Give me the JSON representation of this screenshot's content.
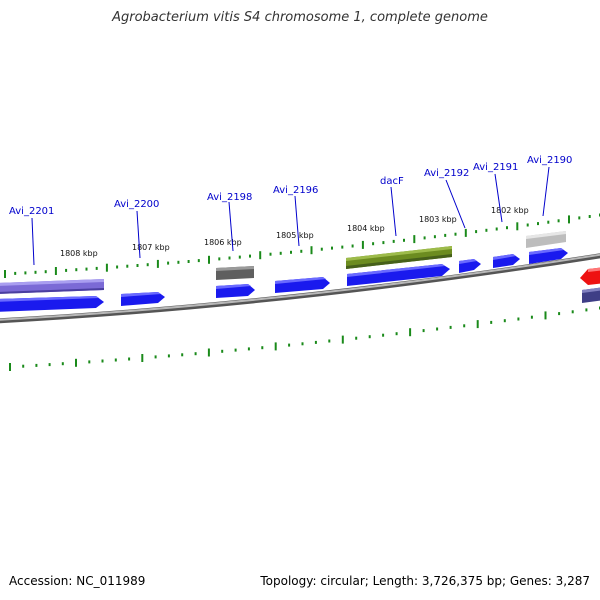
{
  "title": "Agrobacterium vitis S4 chromosome 1, complete genome",
  "footer": {
    "accession": "Accession: NC_011989",
    "summary": "Topology: circular; Length: 3,726,375 bp; Genes: 3,287"
  },
  "colors": {
    "forward_gene": "#1a1aee",
    "pseudogene": "#7b6ad6",
    "dark_gene": "#5f5f5f",
    "rna_gene": "#6c8c20",
    "light_gene": "#bdbdbd",
    "red_gene": "#ee1111",
    "navy_gene": "#3e3e86",
    "backbone": "#808080",
    "tick": "#1a8a1a",
    "label": "#0000cc"
  },
  "scale_labels": [
    {
      "id": "kbp-1808",
      "text": "1808 kbp"
    },
    {
      "id": "kbp-1807",
      "text": "1807 kbp"
    },
    {
      "id": "kbp-1806",
      "text": "1806 kbp"
    },
    {
      "id": "kbp-1805",
      "text": "1805 kbp"
    },
    {
      "id": "kbp-1804",
      "text": "1804 kbp"
    },
    {
      "id": "kbp-1803",
      "text": "1803 kbp"
    },
    {
      "id": "kbp-1802",
      "text": "1802 kbp"
    }
  ],
  "gene_labels": [
    {
      "id": "avi-2201",
      "text": "Avi_2201"
    },
    {
      "id": "avi-2200",
      "text": "Avi_2200"
    },
    {
      "id": "avi-2198",
      "text": "Avi_2198"
    },
    {
      "id": "avi-2196",
      "text": "Avi_2196"
    },
    {
      "id": "dacf",
      "text": "dacF"
    },
    {
      "id": "avi-2192",
      "text": "Avi_2192"
    },
    {
      "id": "avi-2191",
      "text": "Avi_2191"
    },
    {
      "id": "avi-2190",
      "text": "Avi_2190"
    }
  ]
}
